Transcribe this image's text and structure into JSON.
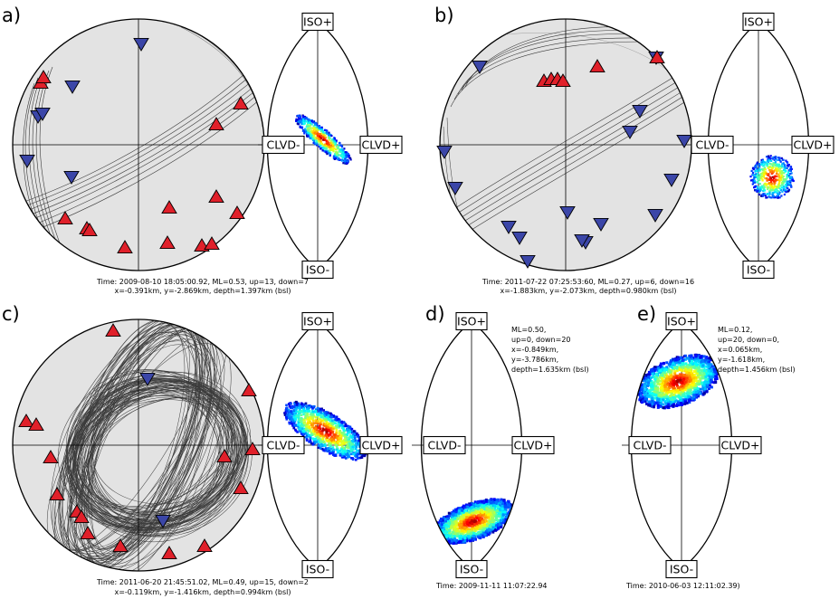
{
  "labels": {
    "iso_plus": "ISO+",
    "iso_minus": "ISO-",
    "clvd_minus": "CLVD-",
    "clvd_plus": "CLVD+"
  },
  "panels": [
    {
      "id": "a",
      "label": "a)",
      "caption1": "Time: 2009-08-10 18:05:00.92, ML=0.53, up=13, down=7",
      "caption2": "x=-0.391km, y=-2.869km, depth=1.397km (bsl)"
    },
    {
      "id": "b",
      "label": "b)",
      "caption1": "Time: 2011-07-22 07:25:53:60, ML=0.27, up=6, down=16",
      "caption2": "x=-1.883km, y=-2.073km, depth=0.980km (bsl)"
    },
    {
      "id": "c",
      "label": "c)",
      "caption1": "Time: 2011-06-20 21:45:51.02, ML=0.49, up=15, down=2",
      "caption2": "x=-0.119km, y=-1.416km, depth=0.994km (bsl)"
    },
    {
      "id": "d",
      "label": "d)",
      "caption1": "Time: 2009-11-11 11:07:22.94",
      "info": [
        "ML=0.50,",
        "up=0, down=20",
        "x=-0.849km,",
        "y=-3.786km,",
        "depth=1.635km (bsl)"
      ]
    },
    {
      "id": "e",
      "label": "e)",
      "caption1": "Time: 2010-06-03 12:11:02.39)",
      "info": [
        "ML=0.12,",
        "up=20, down=0,",
        "x=0.065km,",
        "y=-1.618km,",
        "depth=1.456km (bsl)"
      ]
    }
  ],
  "colors": {
    "beachball_fill": "#e3e3e3",
    "up_marker": "#e0202a",
    "down_marker": "#3b46a8",
    "nodal_lines": "#1a1a1a"
  }
}
